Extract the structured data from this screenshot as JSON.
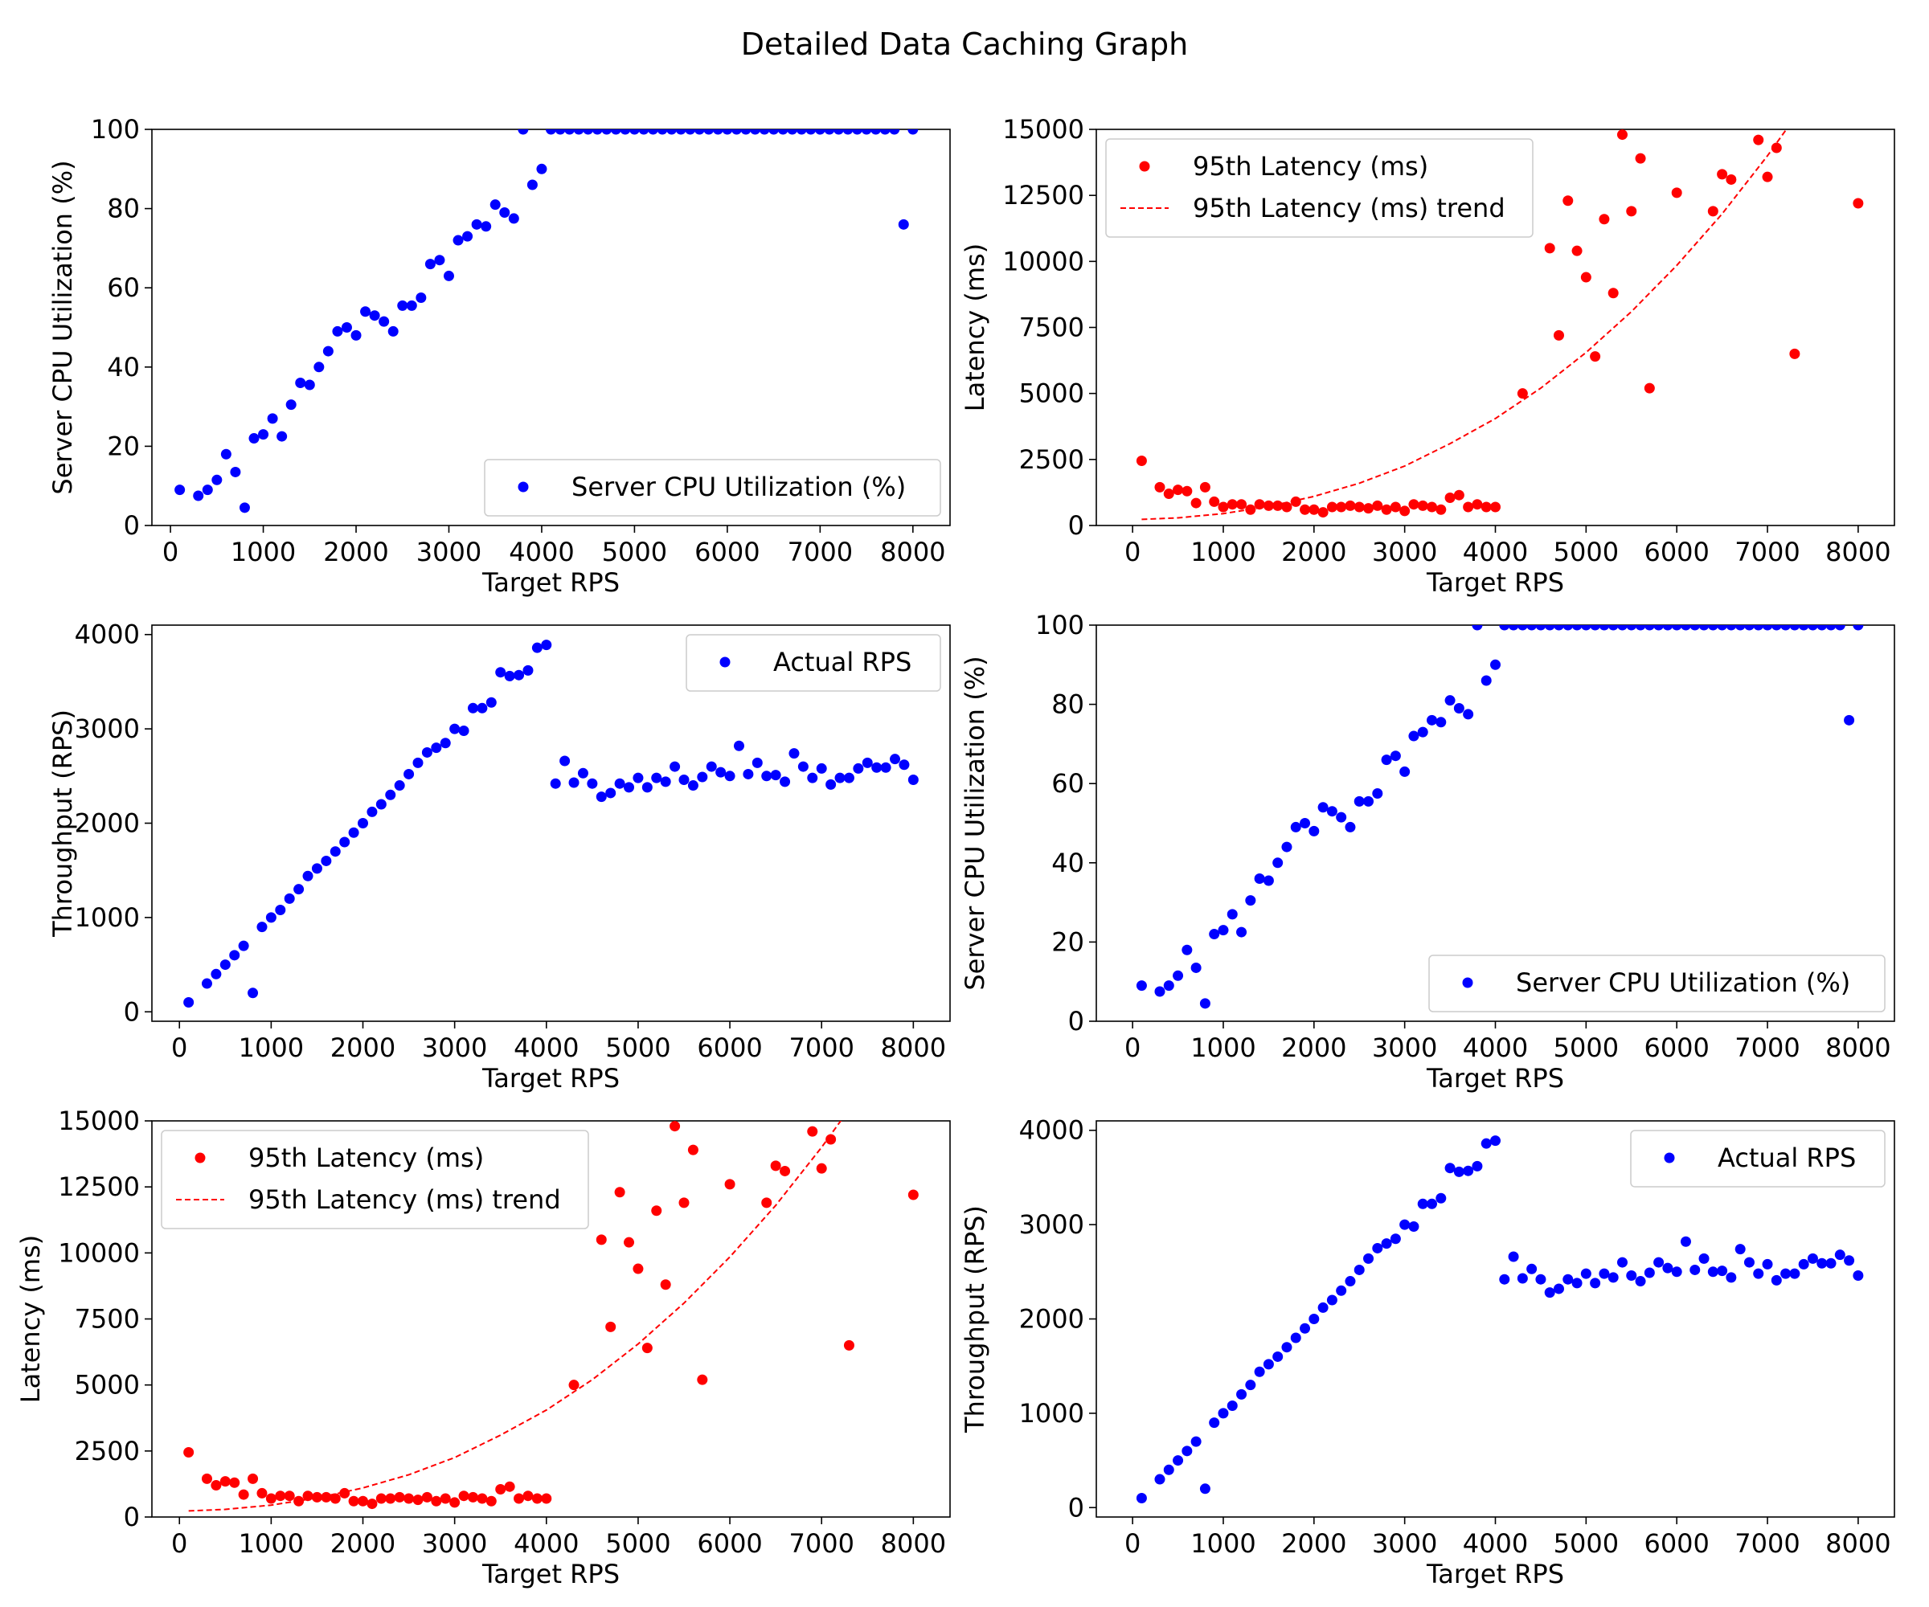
{
  "figure_title": "Detailed Data Caching Graph",
  "chart_data": [
    {
      "type": "scatter",
      "xlabel": "Target RPS",
      "ylabel": "Server CPU Utilization (%)",
      "xlim": [
        -200,
        8400
      ],
      "ylim": [
        0,
        100
      ],
      "xticks": [
        0,
        1000,
        2000,
        3000,
        4000,
        5000,
        6000,
        7000,
        8000
      ],
      "yticks": [
        0,
        20,
        40,
        60,
        80,
        100
      ],
      "legend": "lower-right",
      "grid": false,
      "series": [
        {
          "name": "Server CPU Utilization (%)",
          "dataset": "cpu",
          "color": "#0000ff",
          "marker": "dot"
        }
      ]
    },
    {
      "type": "scatter",
      "xlabel": "Target RPS",
      "ylabel": "Latency (ms)",
      "xlim": [
        -400,
        8400
      ],
      "ylim": [
        0,
        15000
      ],
      "xticks": [
        0,
        1000,
        2000,
        3000,
        4000,
        5000,
        6000,
        7000,
        8000
      ],
      "yticks": [
        0,
        2500,
        5000,
        7500,
        10000,
        12500,
        15000
      ],
      "legend": "upper-left",
      "grid": false,
      "series": [
        {
          "name": "95th Latency (ms)",
          "dataset": "latency",
          "color": "#ff0000",
          "marker": "dot"
        },
        {
          "name": "95th Latency (ms) trend",
          "dataset": "latency_trend",
          "color": "#ff0000",
          "marker": "dashed-line"
        }
      ]
    },
    {
      "type": "scatter",
      "xlabel": "Target RPS",
      "ylabel": "Throughput (RPS)",
      "xlim": [
        -300,
        8400
      ],
      "ylim": [
        -100,
        4100
      ],
      "xticks": [
        0,
        1000,
        2000,
        3000,
        4000,
        5000,
        6000,
        7000,
        8000
      ],
      "yticks": [
        0,
        1000,
        2000,
        3000,
        4000
      ],
      "legend": "upper-right",
      "grid": false,
      "series": [
        {
          "name": "Actual RPS",
          "dataset": "throughput",
          "color": "#0000ff",
          "marker": "dot"
        }
      ]
    },
    {
      "type": "scatter",
      "xlabel": "Target RPS",
      "ylabel": "Server CPU Utilization (%)",
      "xlim": [
        -400,
        8400
      ],
      "ylim": [
        0,
        100
      ],
      "xticks": [
        0,
        1000,
        2000,
        3000,
        4000,
        5000,
        6000,
        7000,
        8000
      ],
      "yticks": [
        0,
        20,
        40,
        60,
        80,
        100
      ],
      "legend": "lower-right",
      "grid": false,
      "series": [
        {
          "name": "Server CPU Utilization (%)",
          "dataset": "cpu",
          "color": "#0000ff",
          "marker": "dot"
        }
      ]
    },
    {
      "type": "scatter",
      "xlabel": "Target RPS",
      "ylabel": "Latency (ms)",
      "xlim": [
        -300,
        8400
      ],
      "ylim": [
        0,
        15000
      ],
      "xticks": [
        0,
        1000,
        2000,
        3000,
        4000,
        5000,
        6000,
        7000,
        8000
      ],
      "yticks": [
        0,
        2500,
        5000,
        7500,
        10000,
        12500,
        15000
      ],
      "legend": "upper-left",
      "grid": false,
      "series": [
        {
          "name": "95th Latency (ms)",
          "dataset": "latency",
          "color": "#ff0000",
          "marker": "dot"
        },
        {
          "name": "95th Latency (ms) trend",
          "dataset": "latency_trend",
          "color": "#ff0000",
          "marker": "dashed-line"
        }
      ]
    },
    {
      "type": "scatter",
      "xlabel": "Target RPS",
      "ylabel": "Throughput (RPS)",
      "xlim": [
        -400,
        8400
      ],
      "ylim": [
        -100,
        4100
      ],
      "xticks": [
        0,
        1000,
        2000,
        3000,
        4000,
        5000,
        6000,
        7000,
        8000
      ],
      "yticks": [
        0,
        1000,
        2000,
        3000,
        4000
      ],
      "legend": "upper-right",
      "grid": false,
      "series": [
        {
          "name": "Actual RPS",
          "dataset": "throughput",
          "color": "#0000ff",
          "marker": "dot"
        }
      ]
    }
  ],
  "datasets": {
    "cpu": {
      "x": [
        100,
        300,
        400,
        500,
        600,
        700,
        800,
        900,
        1000,
        1100,
        1200,
        1300,
        1400,
        1500,
        1600,
        1700,
        1800,
        1900,
        2000,
        2100,
        2200,
        2300,
        2400,
        2500,
        2600,
        2700,
        2800,
        2900,
        3000,
        3100,
        3200,
        3300,
        3400,
        3500,
        3600,
        3700,
        3800,
        3900,
        4000,
        4100,
        4200,
        4300,
        4400,
        4500,
        4600,
        4700,
        4800,
        4900,
        5000,
        5100,
        5200,
        5300,
        5400,
        5500,
        5600,
        5700,
        5800,
        5900,
        6000,
        6100,
        6200,
        6300,
        6400,
        6500,
        6600,
        6700,
        6800,
        6900,
        7000,
        7100,
        7200,
        7300,
        7400,
        7500,
        7600,
        7700,
        7800,
        7900,
        8000
      ],
      "y": [
        9,
        7.5,
        9,
        11.5,
        18,
        13.5,
        4.5,
        22,
        23,
        27,
        22.5,
        30.5,
        36,
        35.5,
        40,
        44,
        49,
        50,
        48,
        54,
        53,
        51.5,
        49,
        55.5,
        55.5,
        57.5,
        66,
        67,
        63,
        72,
        73,
        76,
        75.5,
        81,
        79,
        77.5,
        100,
        86,
        90,
        100,
        100,
        100,
        100,
        100,
        100,
        100,
        100,
        100,
        100,
        100,
        100,
        100,
        100,
        100,
        100,
        100,
        100,
        100,
        100,
        100,
        100,
        100,
        100,
        100,
        100,
        100,
        100,
        100,
        100,
        100,
        100,
        100,
        100,
        100,
        100,
        100,
        100,
        76,
        100
      ]
    },
    "latency": {
      "x": [
        100,
        300,
        400,
        500,
        600,
        700,
        800,
        900,
        1000,
        1100,
        1200,
        1300,
        1400,
        1500,
        1600,
        1700,
        1800,
        1900,
        2000,
        2100,
        2200,
        2300,
        2400,
        2500,
        2600,
        2700,
        2800,
        2900,
        3000,
        3100,
        3200,
        3300,
        3400,
        3500,
        3600,
        3700,
        3800,
        3900,
        4000,
        4300,
        4600,
        4700,
        4800,
        4900,
        5000,
        5100,
        5200,
        5300,
        5400,
        5500,
        5600,
        5700,
        6000,
        6400,
        6500,
        6600,
        6900,
        7000,
        7100,
        7300,
        8000
      ],
      "y": [
        2450,
        1450,
        1200,
        1350,
        1300,
        850,
        1450,
        900,
        700,
        800,
        800,
        600,
        800,
        750,
        750,
        700,
        900,
        600,
        600,
        500,
        700,
        700,
        750,
        700,
        650,
        750,
        600,
        700,
        550,
        800,
        750,
        700,
        600,
        1050,
        1150,
        700,
        800,
        700,
        700,
        5000,
        10500,
        7200,
        12300,
        10400,
        9400,
        6400,
        11600,
        8800,
        14800,
        11900,
        13900,
        5200,
        12600,
        11900,
        13300,
        13100,
        14600,
        13200,
        14300,
        6500,
        12200
      ]
    },
    "latency_trend": {
      "x": [
        100,
        500,
        1000,
        1500,
        2000,
        2500,
        3000,
        3500,
        4000,
        4500,
        5000,
        5500,
        6000,
        6500,
        7000,
        7500,
        7700
      ],
      "y": [
        230,
        290,
        450,
        720,
        1100,
        1600,
        2250,
        3100,
        4050,
        5200,
        6550,
        8100,
        9850,
        11800,
        14000,
        16400,
        17500
      ]
    },
    "throughput": {
      "x": [
        100,
        300,
        400,
        500,
        600,
        700,
        800,
        900,
        1000,
        1100,
        1200,
        1300,
        1400,
        1500,
        1600,
        1700,
        1800,
        1900,
        2000,
        2100,
        2200,
        2300,
        2400,
        2500,
        2600,
        2700,
        2800,
        2900,
        3000,
        3100,
        3200,
        3300,
        3400,
        3500,
        3600,
        3700,
        3800,
        3900,
        4000,
        4100,
        4200,
        4300,
        4400,
        4500,
        4600,
        4700,
        4800,
        4900,
        5000,
        5100,
        5200,
        5300,
        5400,
        5500,
        5600,
        5700,
        5800,
        5900,
        6000,
        6100,
        6200,
        6300,
        6400,
        6500,
        6600,
        6700,
        6800,
        6900,
        7000,
        7100,
        7200,
        7300,
        7400,
        7500,
        7600,
        7700,
        7800,
        7900,
        8000
      ],
      "y": [
        100,
        300,
        400,
        500,
        600,
        700,
        200,
        900,
        1000,
        1080,
        1200,
        1300,
        1440,
        1520,
        1600,
        1700,
        1800,
        1900,
        2000,
        2120,
        2200,
        2300,
        2400,
        2520,
        2640,
        2750,
        2800,
        2850,
        3000,
        2980,
        3220,
        3220,
        3280,
        3600,
        3560,
        3570,
        3620,
        3860,
        3890,
        2420,
        2660,
        2430,
        2530,
        2420,
        2280,
        2320,
        2420,
        2380,
        2480,
        2380,
        2480,
        2440,
        2600,
        2460,
        2400,
        2490,
        2600,
        2540,
        2500,
        2820,
        2520,
        2640,
        2500,
        2510,
        2440,
        2740,
        2600,
        2480,
        2580,
        2410,
        2480,
        2480,
        2580,
        2640,
        2590,
        2590,
        2680,
        2620,
        2460
      ]
    }
  }
}
